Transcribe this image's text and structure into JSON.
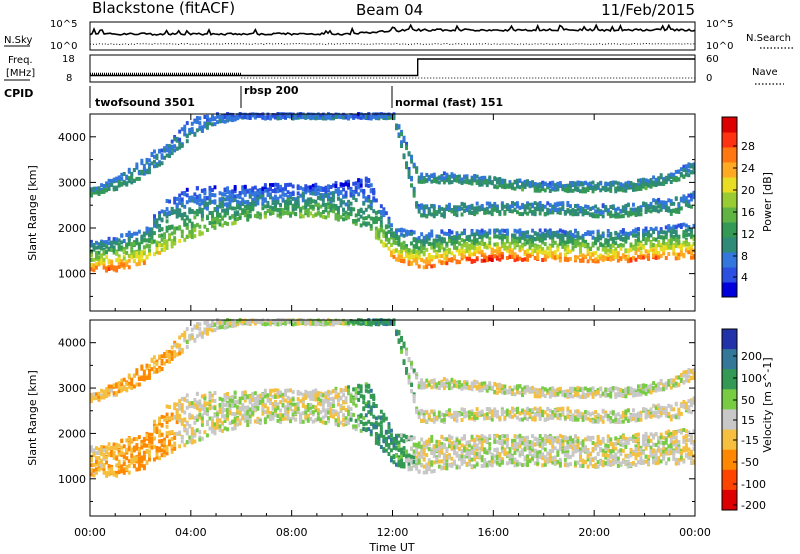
{
  "header": {
    "station": "Blackstone (fitACF)",
    "beam": "Beam 04",
    "date": "11/Feb/2015"
  },
  "status_panels": {
    "nsky_label": "N.Sky",
    "nsky_ticks": [
      "10^5",
      "10^0"
    ],
    "nsearch_label": "N.Search",
    "nsearch_ticks": [
      "10^5",
      "10^0"
    ],
    "freq_label_line1": "Freq.",
    "freq_label_line2": "[MHz]",
    "freq_ticks": [
      "18",
      "8"
    ],
    "nave_label": "Nave",
    "nave_ticks": [
      "60",
      "0"
    ],
    "cpid_label": "CPID",
    "freq_before_switch_mhz": 10.5,
    "freq_after_switch_mhz": 18,
    "switch_hour": 13.0
  },
  "cpid_segments": [
    {
      "label": "twofsound 3501",
      "start_hour": 0.0,
      "end_hour": 6.0
    },
    {
      "label": "rbsp 200",
      "start_hour": 6.0,
      "end_hour": 12.0
    },
    {
      "label": "normal (fast) 151",
      "start_hour": 12.0,
      "end_hour": 24.0
    }
  ],
  "axis": {
    "xlabel": "Time UT",
    "xticks": [
      "00:00",
      "04:00",
      "08:00",
      "12:00",
      "16:00",
      "20:00",
      "00:00"
    ],
    "xtick_hours": [
      0,
      4,
      8,
      12,
      16,
      20,
      24
    ],
    "xlim_hours": [
      0,
      24
    ],
    "ylabel": "Slant Range [km]",
    "yticks": [
      "1000",
      "2000",
      "3000",
      "4000"
    ],
    "ylim_km": [
      180,
      4500
    ]
  },
  "chart_data": [
    {
      "type": "heatmap",
      "name": "power",
      "parameter": "Power",
      "colorbar_label": "Power [dB]",
      "colorbar_ticks": [
        "28",
        "24",
        "20",
        "16",
        "12",
        "8",
        "4"
      ],
      "colorbar_range": [
        0,
        30
      ],
      "colorbar_colors": [
        "#0000dd",
        "#2b4fe0",
        "#3377dd",
        "#2f8a78",
        "#339955",
        "#5fb443",
        "#99cc33",
        "#e8dd22",
        "#ffaa22",
        "#ff7711",
        "#ff3311",
        "#dd0000"
      ],
      "x_hours": [
        0,
        1,
        2,
        3,
        4,
        5,
        6,
        7,
        8,
        9,
        10,
        11,
        12,
        13,
        14,
        15,
        16,
        17,
        18,
        19,
        20,
        21,
        22,
        23,
        24
      ],
      "bands": [
        {
          "description": "main backscatter band (km)",
          "lower": [
            1050,
            1060,
            1200,
            1500,
            1800,
            2000,
            2150,
            2250,
            2250,
            2250,
            2150,
            2000,
            1300,
            1100,
            1200,
            1250,
            1300,
            1280,
            1300,
            1280,
            1260,
            1250,
            1300,
            1320,
            1350
          ],
          "upper": [
            1700,
            1800,
            2000,
            2600,
            2900,
            2900,
            2900,
            2950,
            2950,
            2950,
            3000,
            3100,
            2000,
            1900,
            1950,
            1950,
            1950,
            1950,
            1950,
            1950,
            1920,
            1950,
            2000,
            2050,
            2100
          ]
        },
        {
          "description": "upper band (km)",
          "lower": [
            2700,
            2850,
            3100,
            3500,
            4000,
            4300,
            4400,
            4400,
            4400,
            4400,
            4400,
            4400,
            4400,
            2250,
            2250,
            2300,
            2300,
            2300,
            2300,
            2300,
            2250,
            2250,
            2300,
            2300,
            2400
          ],
          "upper": [
            2900,
            3100,
            3500,
            3900,
            4400,
            4500,
            4500,
            4500,
            4500,
            4500,
            4500,
            4500,
            4500,
            2500,
            2500,
            2550,
            2550,
            2550,
            2550,
            2550,
            2500,
            2500,
            2600,
            2650,
            2800
          ]
        },
        {
          "description": "far band (km)",
          "lower": [
            4500,
            4500,
            4500,
            4500,
            4500,
            4500,
            4500,
            4500,
            4500,
            4500,
            4500,
            4500,
            4500,
            3000,
            3000,
            2950,
            2900,
            2850,
            2800,
            2800,
            2800,
            2800,
            2850,
            3000,
            3200
          ],
          "upper": [
            4500,
            4500,
            4500,
            4500,
            4500,
            4500,
            4500,
            4500,
            4500,
            4500,
            4500,
            4500,
            4500,
            3200,
            3200,
            3150,
            3100,
            3050,
            3000,
            3000,
            3000,
            3000,
            3100,
            3200,
            3500
          ]
        }
      ],
      "peak_power_db": [
        24,
        26,
        22,
        18,
        16,
        15,
        14,
        14,
        14,
        16,
        14,
        12,
        24,
        24,
        24,
        26,
        28,
        26,
        24,
        24,
        24,
        24,
        26,
        24,
        24
      ]
    },
    {
      "type": "heatmap",
      "name": "velocity",
      "parameter": "Velocity",
      "colorbar_label": "Velocity [m s^-1]",
      "colorbar_ticks": [
        "200",
        "100",
        "50",
        "15",
        "-15",
        "-50",
        "-100",
        "-200"
      ],
      "colorbar_range": [
        -250,
        250
      ],
      "colorbar_colors": [
        "#2233aa",
        "#337799",
        "#339955",
        "#77cc44",
        "#c8c8c8",
        "#f5c040",
        "#ff8800",
        "#ff4400",
        "#dd0000"
      ],
      "x_hours": [
        0,
        1,
        2,
        3,
        4,
        5,
        6,
        7,
        8,
        9,
        10,
        11,
        12,
        13,
        14,
        15,
        16,
        17,
        18,
        19,
        20,
        21,
        22,
        23,
        24
      ],
      "mean_velocity_ms": [
        -30,
        -40,
        -60,
        -50,
        0,
        0,
        0,
        0,
        0,
        0,
        0,
        60,
        60,
        0,
        0,
        0,
        0,
        0,
        0,
        0,
        0,
        0,
        0,
        0,
        -20
      ]
    }
  ]
}
